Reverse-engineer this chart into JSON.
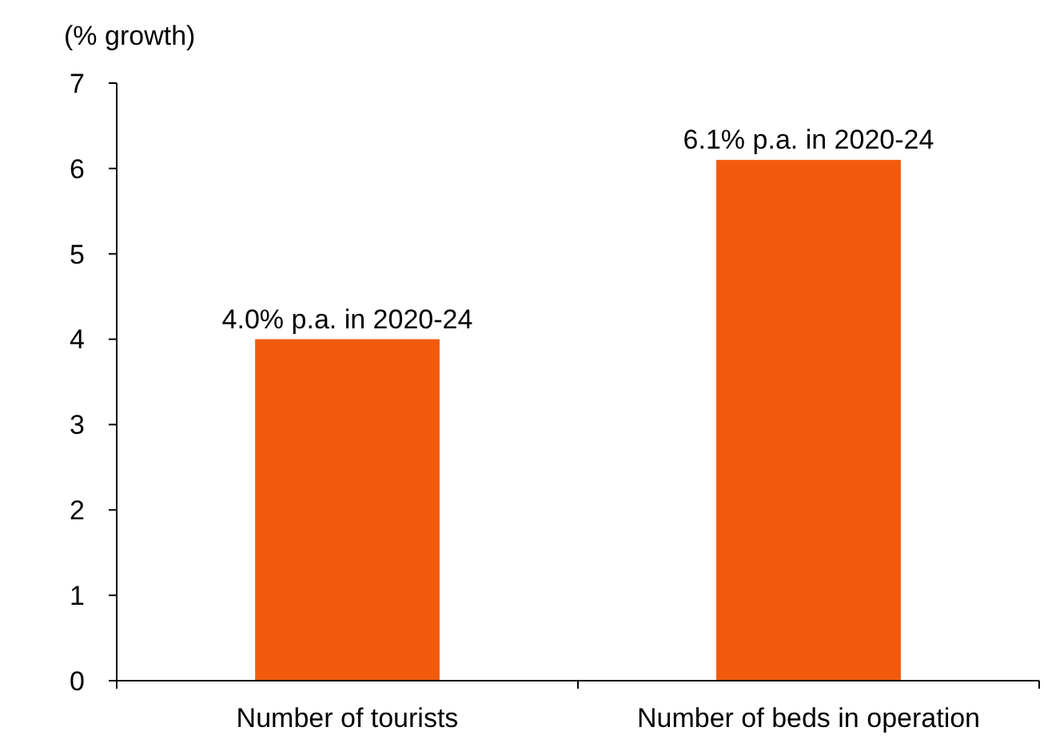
{
  "chart_data": {
    "type": "bar",
    "ylabel": "(% growth)",
    "categories": [
      "Number of tourists",
      "Number of beds in operation"
    ],
    "values": [
      4.0,
      6.1
    ],
    "value_labels": [
      "4.0% p.a. in 2020-24",
      "6.1% p.a. in 2020-24"
    ],
    "color": "#f25a0e",
    "ylim": [
      0,
      7
    ],
    "yticks": [
      0,
      1,
      2,
      3,
      4,
      5,
      6,
      7
    ]
  }
}
